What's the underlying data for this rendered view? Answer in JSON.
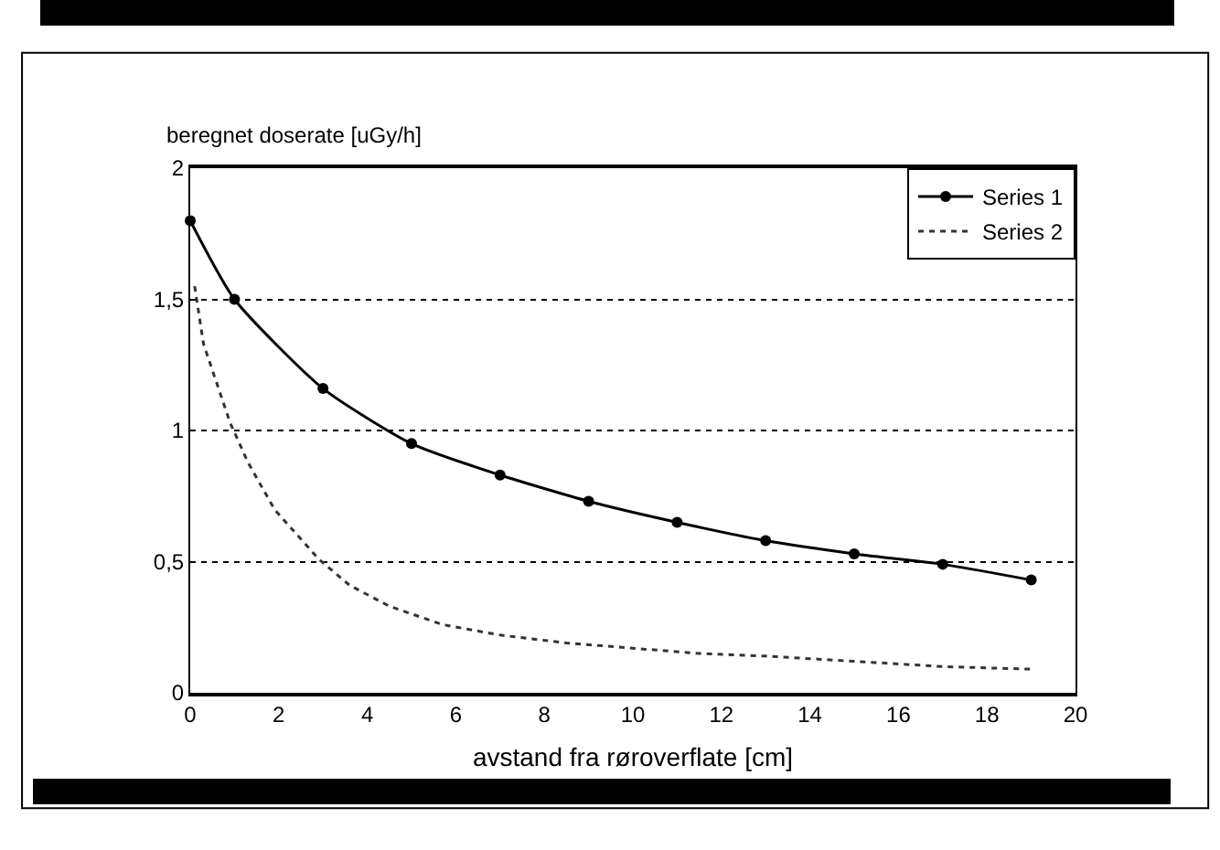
{
  "chart_data": {
    "type": "line",
    "xlabel": "avstand fra røroverflate [cm]",
    "ylabel": "beregnet doserate [uGy/h]",
    "series": [
      {
        "name": "Series 1",
        "color": "#000000",
        "marker": "circle",
        "line_style": "solid",
        "x": [
          0,
          1,
          3,
          5,
          7,
          9,
          11,
          13,
          15,
          17,
          19
        ],
        "values": [
          1.8,
          1.5,
          1.16,
          0.95,
          0.83,
          0.73,
          0.65,
          0.58,
          0.53,
          0.49,
          0.43
        ]
      },
      {
        "name": "Series 2",
        "color": "#333333",
        "marker": "none",
        "line_style": "dotted",
        "x": [
          0.1,
          0.3,
          0.6,
          0.9,
          1.3,
          1.9,
          2.9,
          3.6,
          4.5,
          5.7,
          7,
          8.5,
          10,
          11.5,
          13,
          15,
          17,
          19
        ],
        "values": [
          1.55,
          1.33,
          1.18,
          1.03,
          0.88,
          0.7,
          0.51,
          0.41,
          0.33,
          0.26,
          0.22,
          0.19,
          0.17,
          0.15,
          0.14,
          0.12,
          0.1,
          0.09
        ]
      }
    ],
    "xlim": [
      0,
      20
    ],
    "xticks": [
      0,
      2,
      4,
      6,
      8,
      10,
      12,
      14,
      16,
      18,
      20
    ],
    "ylim": [
      0,
      2
    ],
    "yticks": [
      0,
      {
        "value": 0.5,
        "label": "0,5"
      },
      1,
      {
        "value": 1.5,
        "label": "1,5"
      },
      2
    ],
    "grid": "y",
    "legend": "top right"
  }
}
